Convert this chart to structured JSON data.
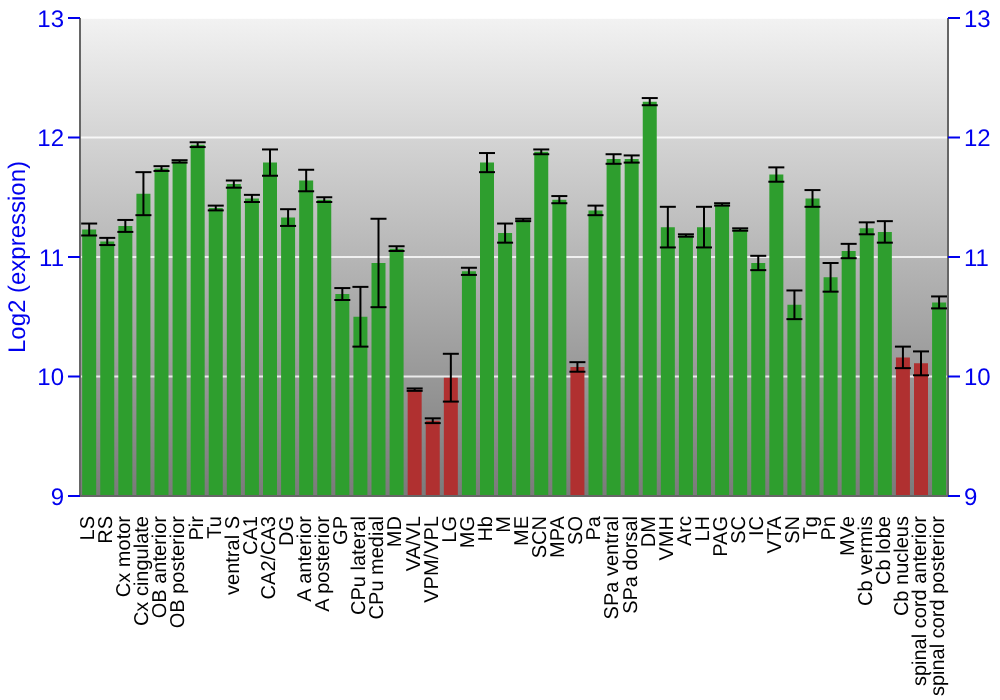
{
  "chart_data": {
    "type": "bar",
    "ylabel": "Log2 (expression)",
    "categories": [
      "LS",
      "RS",
      "Cx motor",
      "Cx cingulate",
      "OB anterior",
      "OB posterior",
      "Pir",
      "Tu",
      "ventral S",
      "CA1",
      "CA2/CA3",
      "DG",
      "A anterior",
      "A posterior",
      "GP",
      "CPu lateral",
      "CPu medial",
      "MD",
      "VA/VL",
      "VPM/VPL",
      "LG",
      "MG",
      "Hb",
      "M",
      "ME",
      "SCN",
      "MPA",
      "SO",
      "Pa",
      "SPa ventral",
      "SPa dorsal",
      "DM",
      "VMH",
      "Arc",
      "LH",
      "PAG",
      "SC",
      "IC",
      "VTA",
      "SN",
      "Tg",
      "Pn",
      "MVe",
      "Cb vermis",
      "Cb lobe",
      "Cb nucleus",
      "spinal cord anterior",
      "spinal cord posterior"
    ],
    "values": [
      11.23,
      11.13,
      11.26,
      11.53,
      11.74,
      11.8,
      11.94,
      11.41,
      11.61,
      11.49,
      11.79,
      11.33,
      11.64,
      11.48,
      10.69,
      10.5,
      10.95,
      11.07,
      9.89,
      9.63,
      9.99,
      10.88,
      11.79,
      11.2,
      11.31,
      11.88,
      11.48,
      10.08,
      11.39,
      11.82,
      11.82,
      12.3,
      11.25,
      11.18,
      11.25,
      11.44,
      11.23,
      10.95,
      11.69,
      10.6,
      11.49,
      10.83,
      11.05,
      11.24,
      11.21,
      10.16,
      10.11,
      10.62
    ],
    "errors": [
      0.05,
      0.03,
      0.05,
      0.18,
      0.02,
      0.01,
      0.02,
      0.02,
      0.03,
      0.03,
      0.11,
      0.07,
      0.09,
      0.02,
      0.05,
      0.25,
      0.37,
      0.02,
      0.01,
      0.02,
      0.2,
      0.03,
      0.08,
      0.08,
      0.01,
      0.02,
      0.03,
      0.04,
      0.04,
      0.04,
      0.03,
      0.03,
      0.17,
      0.01,
      0.17,
      0.01,
      0.01,
      0.06,
      0.06,
      0.12,
      0.07,
      0.12,
      0.06,
      0.05,
      0.09,
      0.09,
      0.1,
      0.05
    ],
    "colors": [
      "#2e9e2e",
      "#2e9e2e",
      "#2e9e2e",
      "#2e9e2e",
      "#2e9e2e",
      "#2e9e2e",
      "#2e9e2e",
      "#2e9e2e",
      "#2e9e2e",
      "#2e9e2e",
      "#2e9e2e",
      "#2e9e2e",
      "#2e9e2e",
      "#2e9e2e",
      "#2e9e2e",
      "#2e9e2e",
      "#2e9e2e",
      "#2e9e2e",
      "#b03030",
      "#b03030",
      "#b03030",
      "#2e9e2e",
      "#2e9e2e",
      "#2e9e2e",
      "#2e9e2e",
      "#2e9e2e",
      "#2e9e2e",
      "#b03030",
      "#2e9e2e",
      "#2e9e2e",
      "#2e9e2e",
      "#2e9e2e",
      "#2e9e2e",
      "#2e9e2e",
      "#2e9e2e",
      "#2e9e2e",
      "#2e9e2e",
      "#2e9e2e",
      "#2e9e2e",
      "#2e9e2e",
      "#2e9e2e",
      "#2e9e2e",
      "#2e9e2e",
      "#2e9e2e",
      "#2e9e2e",
      "#b03030",
      "#b03030",
      "#2e9e2e"
    ],
    "ylim": [
      9,
      13
    ],
    "yticks": [
      9,
      10,
      11,
      12,
      13
    ],
    "y2lim": [
      9,
      13
    ],
    "y2ticks": [
      9,
      10,
      11,
      12,
      13
    ],
    "grid": "y"
  }
}
